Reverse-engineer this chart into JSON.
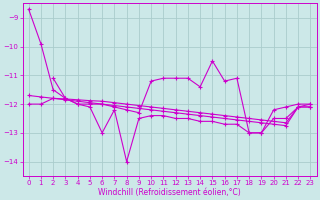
{
  "background_color": "#cce8e8",
  "plot_bg_color": "#cce8e8",
  "line_color": "#cc00cc",
  "grid_color": "#aacccc",
  "xlabel": "Windchill (Refroidissement éolien,°C)",
  "xlim": [
    -0.5,
    23.5
  ],
  "ylim": [
    -14.5,
    -8.5
  ],
  "yticks": [
    -14,
    -13,
    -12,
    -11,
    -10,
    -9
  ],
  "xticks": [
    0,
    1,
    2,
    3,
    4,
    5,
    6,
    7,
    8,
    9,
    10,
    11,
    12,
    13,
    14,
    15,
    16,
    17,
    18,
    19,
    20,
    21,
    22,
    23
  ],
  "line1_x": [
    0,
    1,
    2,
    3,
    4,
    5,
    6,
    7,
    8,
    9,
    10,
    11,
    12,
    13,
    14,
    15,
    16,
    17,
    18,
    19,
    20,
    21,
    22,
    23
  ],
  "line1_y": [
    -8.7,
    -9.9,
    -11.5,
    -11.8,
    -12.0,
    -12.1,
    -13.0,
    -12.2,
    -14.0,
    -12.5,
    -12.4,
    -12.4,
    -12.5,
    -12.5,
    -12.6,
    -12.6,
    -12.7,
    -12.7,
    -13.0,
    -13.0,
    -12.2,
    -12.1,
    -12.0,
    -12.0
  ],
  "line2_x": [
    2,
    3,
    4,
    5,
    6,
    7,
    8,
    9,
    10,
    11,
    12,
    13,
    14,
    15,
    16,
    17,
    18,
    19,
    20,
    21,
    22,
    23
  ],
  "line2_y": [
    -11.1,
    -11.8,
    -12.0,
    -12.0,
    -12.0,
    -12.1,
    -12.2,
    -12.3,
    -11.2,
    -11.1,
    -11.1,
    -11.1,
    -11.4,
    -10.5,
    -11.2,
    -11.1,
    -13.0,
    -13.0,
    -12.5,
    -12.5,
    -12.1,
    -12.0
  ],
  "line3_x": [
    0,
    1,
    2,
    3,
    4,
    5,
    6,
    7,
    8,
    9,
    10,
    11,
    12,
    13,
    14,
    15,
    16,
    17,
    18,
    19,
    20,
    21,
    22,
    23
  ],
  "line3_y": [
    -11.7,
    -11.75,
    -11.8,
    -11.85,
    -11.9,
    -11.95,
    -12.0,
    -12.05,
    -12.1,
    -12.15,
    -12.2,
    -12.25,
    -12.3,
    -12.35,
    -12.4,
    -12.45,
    -12.5,
    -12.55,
    -12.6,
    -12.65,
    -12.7,
    -12.75,
    -12.1,
    -12.1
  ],
  "line4_x": [
    0,
    1,
    2,
    3,
    4,
    5,
    6,
    7,
    8,
    9,
    10,
    11,
    12,
    13,
    14,
    15,
    16,
    17,
    18,
    19,
    20,
    21,
    22,
    23
  ],
  "line4_y": [
    -12.0,
    -12.0,
    -11.8,
    -11.82,
    -11.85,
    -11.88,
    -11.9,
    -11.95,
    -12.0,
    -12.05,
    -12.1,
    -12.15,
    -12.2,
    -12.25,
    -12.3,
    -12.35,
    -12.4,
    -12.45,
    -12.5,
    -12.55,
    -12.6,
    -12.65,
    -12.1,
    -12.1
  ]
}
